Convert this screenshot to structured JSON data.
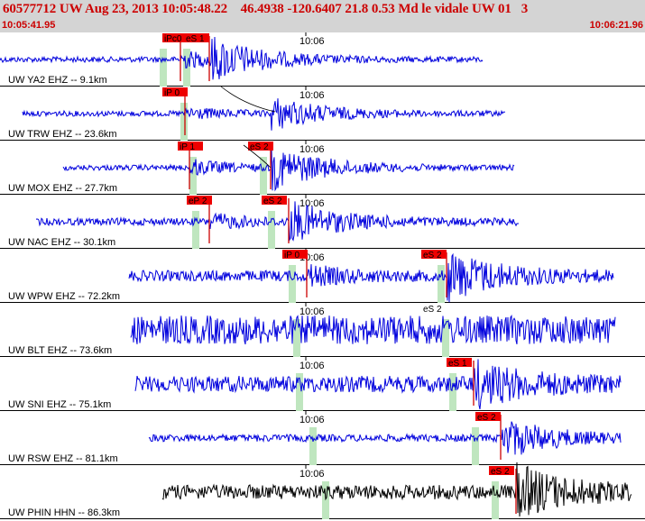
{
  "header": {
    "title": "60577712 UW Aug 23, 2013 10:05:48.22    46.4938 -120.6407 21.8 0.53 Md le vidale UW 01   3",
    "start_time": "10:05:41.95",
    "end_time": "10:06:21.96"
  },
  "tick_label": "10:06",
  "colors": {
    "trace": "#0000dd",
    "trace_alt": "#000000",
    "pick_box": "#ee0000",
    "pick_line": "#cc0000",
    "window": "#bfe6bf",
    "header_text": "#cc0000"
  },
  "stations": [
    {
      "label": "UW YA2 EHZ -- 9.1km",
      "trace_color": "blue",
      "picks": [
        {
          "name": "iPc0",
          "boxed": true
        },
        {
          "name": "eS 1",
          "boxed": true
        }
      ]
    },
    {
      "label": "UW TRW EHZ -- 23.6km",
      "trace_color": "blue",
      "picks": [
        {
          "name": "iP 0",
          "boxed": true
        }
      ]
    },
    {
      "label": "UW MOX EHZ -- 27.7km",
      "trace_color": "blue",
      "picks": [
        {
          "name": "iP 1",
          "boxed": true
        },
        {
          "name": "eS 2",
          "boxed": true
        }
      ]
    },
    {
      "label": "UW NAC EHZ -- 30.1km",
      "trace_color": "blue",
      "picks": [
        {
          "name": "eP 2",
          "boxed": true
        },
        {
          "name": "eS 2",
          "boxed": true
        }
      ]
    },
    {
      "label": "UW WPW EHZ -- 72.2km",
      "trace_color": "blue",
      "picks": [
        {
          "name": "iP 0",
          "boxed": true
        },
        {
          "name": "eS 2",
          "boxed": true
        }
      ]
    },
    {
      "label": "UW BLT EHZ -- 73.6km",
      "trace_color": "blue",
      "picks": [
        {
          "name": "eS 2",
          "boxed": false
        }
      ]
    },
    {
      "label": "UW SNI EHZ -- 75.1km",
      "trace_color": "blue",
      "picks": [
        {
          "name": "eS 1",
          "boxed": true
        }
      ]
    },
    {
      "label": "UW RSW EHZ -- 81.1km",
      "trace_color": "blue",
      "picks": [
        {
          "name": "eS 2",
          "boxed": true
        }
      ]
    },
    {
      "label": "UW PHIN HHN -- 86.3km",
      "trace_color": "black",
      "picks": [
        {
          "name": "eS 2",
          "boxed": true
        }
      ]
    }
  ]
}
